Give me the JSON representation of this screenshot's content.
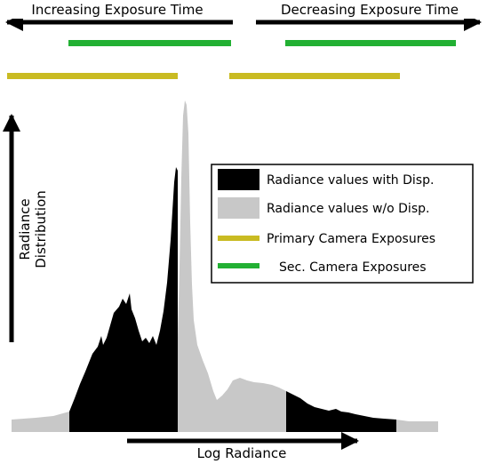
{
  "header": {
    "left_label": "Increasing Exposure Time",
    "right_label": "Decreasing Exposure Time"
  },
  "axes": {
    "y_label_line1": "Radiance",
    "y_label_line2": "Distribution",
    "x_label": "Log Radiance"
  },
  "legend": {
    "items": [
      {
        "label": "Radiance values with Disp.",
        "color": "#000000"
      },
      {
        "label": "Radiance values w/o Disp.",
        "color": "#c8c8c8"
      },
      {
        "label": "Primary Camera Exposures",
        "color": "#c9bb22"
      },
      {
        "label": "Sec. Camera Exposures",
        "color": "#22b033"
      }
    ]
  },
  "colors": {
    "with_disp": "#000000",
    "without_disp": "#c8c8c8",
    "primary_exposure": "#c9bb22",
    "secondary_exposure": "#22b033"
  }
}
